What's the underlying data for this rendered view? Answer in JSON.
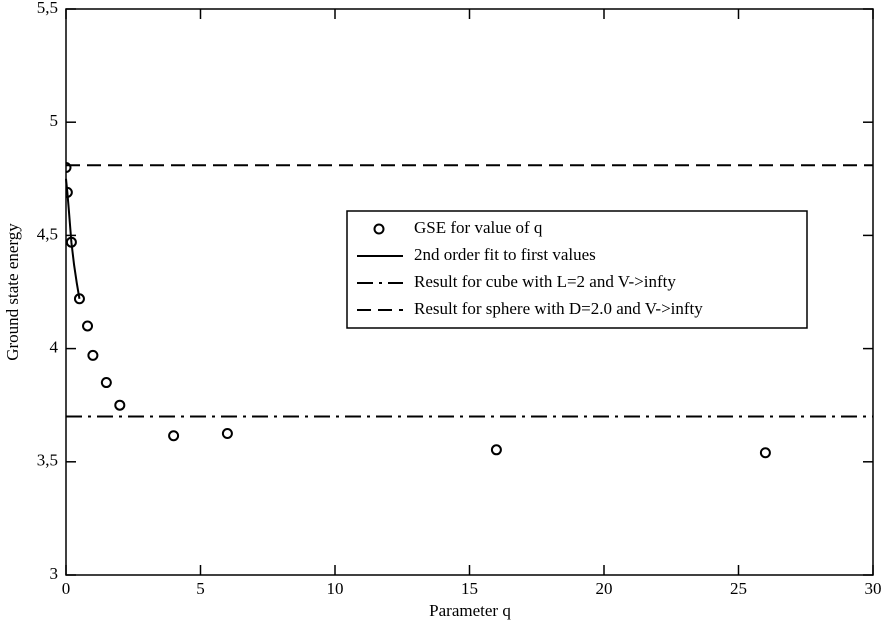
{
  "chart_data": {
    "type": "scatter",
    "xlabel": "Parameter q",
    "ylabel": "Ground state energy",
    "xlim": [
      0,
      30
    ],
    "xticks": [
      0,
      5,
      10,
      15,
      20,
      25,
      30
    ],
    "ylim": [
      3,
      5.5
    ],
    "yticks": [
      3,
      {
        "value": 3.5,
        "label": "3,5"
      },
      4,
      {
        "value": 4.5,
        "label": "4,5"
      },
      5,
      {
        "value": 5.5,
        "label": "5,5"
      }
    ],
    "legend": "upper right",
    "series": [
      {
        "name": "GSE for value of q",
        "kind": "marker",
        "color": "#000000",
        "x": [
          0,
          0.05,
          0.2,
          0.5,
          0.8,
          1,
          1.5,
          2,
          4,
          6,
          16,
          26
        ],
        "values": [
          4.8,
          4.69,
          4.47,
          4.22,
          4.1,
          3.97,
          3.85,
          3.75,
          3.615,
          3.625,
          3.553,
          3.54
        ]
      },
      {
        "name": "2nd order fit to first values",
        "kind": "solid",
        "color": "#000000",
        "x": [
          0,
          0.05,
          0.1,
          0.2,
          0.3,
          0.4,
          0.5
        ],
        "values": [
          4.75,
          4.69,
          4.62,
          4.47,
          4.37,
          4.29,
          4.22
        ]
      },
      {
        "name": "Result for cube with L=2 and V->infty",
        "kind": "dashdot",
        "color": "#000000",
        "y": 3.7
      },
      {
        "name": "Result for sphere with D=2.0 and V->infty",
        "kind": "dashed",
        "color": "#000000",
        "y": 4.81
      }
    ]
  }
}
